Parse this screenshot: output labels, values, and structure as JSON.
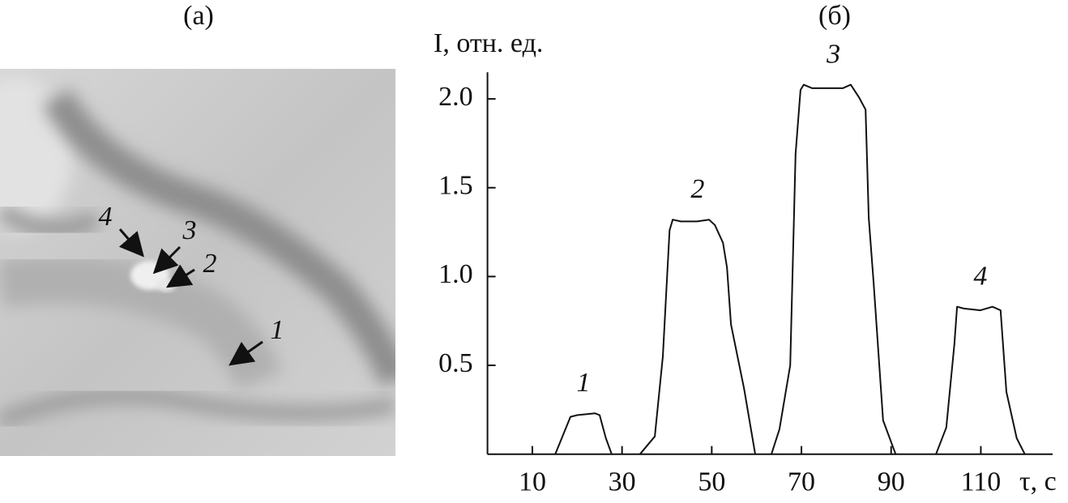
{
  "photo": {
    "panel_label": "(a)",
    "labels": [
      "4",
      "3",
      "2",
      "1"
    ]
  },
  "chart_data": {
    "type": "line",
    "panel_label": "(б)",
    "y_label": "I, отн. ед.",
    "x_label": "τ, с",
    "xlim": [
      0,
      126
    ],
    "ylim": [
      0,
      2.15
    ],
    "xticks": [
      10,
      30,
      50,
      70,
      90,
      110
    ],
    "yticks": [
      0.5,
      {
        "value": 1,
        "label": "1.0"
      },
      1.5,
      {
        "value": 2,
        "label": "2.0"
      }
    ],
    "annotations": [
      "1",
      "2",
      "3",
      "4"
    ],
    "color": "#111111",
    "x": [
      15.1,
      18.5,
      20,
      24,
      25,
      26.4,
      27.7,
      null,
      34,
      37.3,
      39.1,
      40.6,
      41.3,
      43.1,
      46.7,
      49.4,
      50.7,
      52.5,
      53.4,
      54.3,
      57.2,
      59.7,
      null,
      63.3,
      65.1,
      67.5,
      68.7,
      69.8,
      70.5,
      72.4,
      74.7,
      79.2,
      81,
      82.8,
      84.3,
      85,
      86.1,
      88.2,
      91,
      null,
      100,
      102.3,
      104.1,
      104.7,
      106.2,
      109.9,
      112.6,
      114.4,
      115.7,
      118,
      119.8
    ],
    "values": [
      0,
      0.21,
      0.22,
      0.23,
      0.22,
      0.09,
      0,
      null,
      0,
      0.1,
      0.55,
      1.26,
      1.32,
      1.31,
      1.31,
      1.32,
      1.29,
      1.19,
      1.05,
      0.73,
      0.37,
      0,
      null,
      0,
      0.14,
      0.5,
      1.69,
      2.05,
      2.08,
      2.06,
      2.06,
      2.06,
      2.08,
      2.01,
      1.94,
      1.33,
      0.96,
      0.19,
      0,
      null,
      0,
      0.15,
      0.62,
      0.83,
      0.82,
      0.81,
      0.83,
      0.81,
      0.35,
      0.09,
      0
    ]
  }
}
